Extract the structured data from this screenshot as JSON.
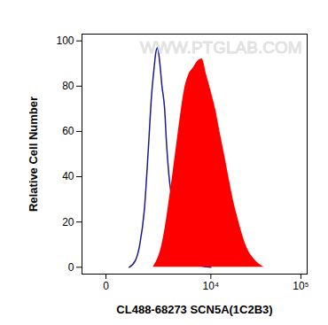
{
  "chart_data": {
    "type": "line",
    "x_label": "CL488-68273 SCN5A(1C2B3)",
    "y_label": "Relative Cell Number",
    "annotations": [
      {
        "text": "WWW.PTGLAB.COM"
      }
    ],
    "log": "x",
    "xlim": [
      -650,
      117000
    ],
    "xticks": [
      0,
      {
        "value": 10000,
        "label": "10⁴"
      },
      {
        "value": 100000,
        "label": "10⁵"
      }
    ],
    "ylim": [
      -3,
      103
    ],
    "yticks": [
      0,
      20,
      40,
      60,
      80,
      100
    ],
    "grid": false,
    "series": [
      {
        "type": "line",
        "color": "#1f1a8c",
        "x": [
          620,
          860,
          1050,
          1270,
          1510,
          1670,
          1840,
          1960,
          2080,
          2210,
          2410,
          2630,
          2790,
          3030,
          3300,
          3680,
          4200,
          4780,
          6160,
          7880,
          10000
        ],
        "values": [
          0,
          3,
          10,
          25,
          55,
          75,
          88,
          95,
          97,
          92,
          80,
          70,
          55,
          40,
          30,
          18,
          10,
          6,
          2,
          0.5,
          0
        ]
      },
      {
        "type": "area",
        "color": "#ff0000",
        "x": [
          1780,
          2410,
          3210,
          3680,
          4200,
          4780,
          5430,
          6160,
          6980,
          7880,
          8890,
          10000,
          11300,
          12700,
          14300,
          16000,
          18000,
          20200,
          22600,
          25400,
          31800,
          39900
        ],
        "values": [
          0,
          10,
          35,
          50,
          65,
          78,
          85,
          88,
          91,
          92,
          85,
          78,
          70,
          60,
          50,
          40,
          30,
          22,
          15,
          9,
          3,
          0
        ]
      }
    ]
  }
}
